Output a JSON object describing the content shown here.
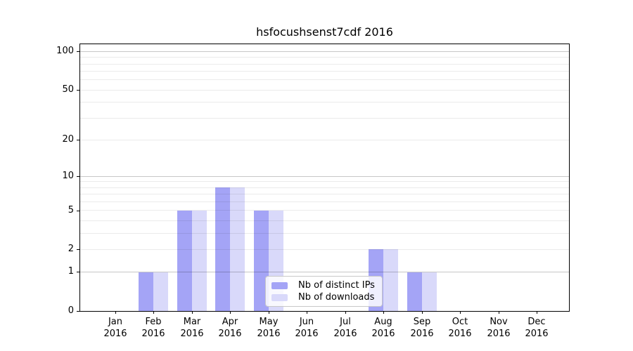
{
  "chart_data": {
    "type": "bar",
    "title": "hsfocushsenst7cdf 2016",
    "categories": [
      "Jan",
      "Feb",
      "Mar",
      "Apr",
      "May",
      "Jun",
      "Jul",
      "Aug",
      "Sep",
      "Oct",
      "Nov",
      "Dec"
    ],
    "x_year_label": "2016",
    "series": [
      {
        "name": "Nb of distinct IPs",
        "color": "#a4a4f6",
        "values": [
          0,
          1,
          5,
          8,
          5,
          0,
          0,
          2,
          1,
          0,
          0,
          0
        ]
      },
      {
        "name": "Nb of downloads",
        "color": "#d9d9fa",
        "values": [
          0,
          1,
          5,
          8,
          5,
          0,
          0,
          2,
          1,
          0,
          0,
          0
        ]
      }
    ],
    "xlabel": "",
    "ylabel": "",
    "yscale": "log1p",
    "ylim": [
      0,
      114
    ],
    "yticks": [
      0,
      1,
      2,
      5,
      10,
      20,
      50,
      100
    ],
    "grid": true,
    "gridlines": {
      "minor_values": [
        2,
        3,
        4,
        5,
        6,
        7,
        8,
        9,
        20,
        30,
        40,
        50,
        60,
        70,
        80,
        90
      ],
      "decade_values": [
        1,
        10,
        100
      ],
      "minor_color": "rgba(0,0,0,0.08)",
      "decade_color": "rgba(0,0,0,0.22)"
    },
    "legend_position": "inside lower-center",
    "axis_color": "#000000",
    "text_color": "#000000",
    "background_color": "#ffffff"
  }
}
